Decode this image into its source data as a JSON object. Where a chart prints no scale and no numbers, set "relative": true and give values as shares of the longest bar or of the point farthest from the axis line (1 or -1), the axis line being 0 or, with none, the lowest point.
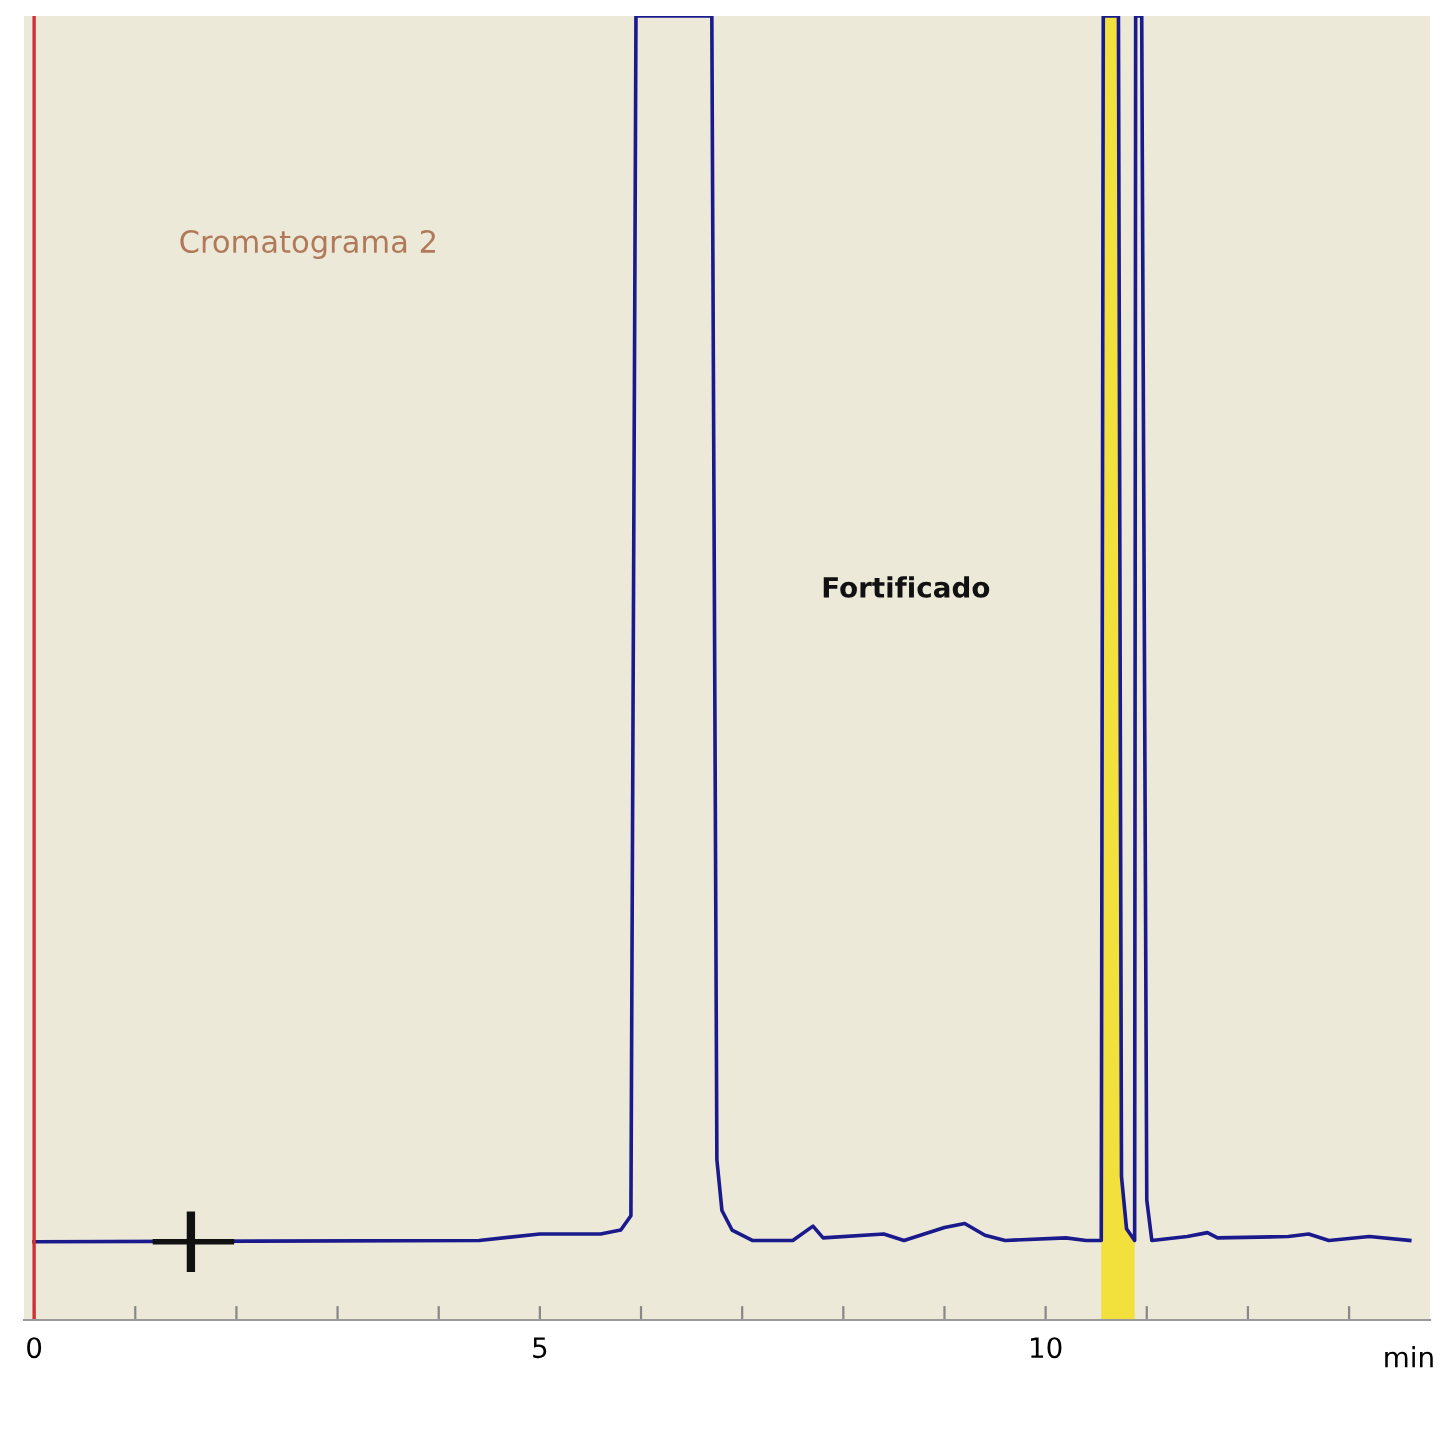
{
  "chart_data": {
    "type": "line",
    "relative": true,
    "xlabel": "min",
    "xlim": [
      -0.1,
      13.8
    ],
    "xticks": [
      0,
      {
        "value": 1,
        "label": null
      },
      {
        "value": 2,
        "label": null
      },
      {
        "value": 3,
        "label": null
      },
      {
        "value": 4,
        "label": null
      },
      5,
      {
        "value": 6,
        "label": null
      },
      {
        "value": 7,
        "label": null
      },
      {
        "value": 8,
        "label": null
      },
      {
        "value": 9,
        "label": null
      },
      10,
      {
        "value": 11,
        "label": null
      },
      {
        "value": 12,
        "label": null
      },
      {
        "value": 13,
        "label": null
      }
    ],
    "series": [
      {
        "type": "area",
        "color": "#f2e13c",
        "x": [
          10.55,
          10.57,
          10.72,
          10.75,
          10.8,
          10.88
        ],
        "values": [
          0.06,
          1,
          1,
          0.11,
          0.07,
          0.06
        ]
      },
      {
        "color": "#1a1a8c",
        "x": [
          0,
          4.4,
          5.0,
          5.6,
          5.8,
          5.9,
          5.95,
          6.7,
          6.75,
          6.8,
          6.9,
          7.1,
          7.5,
          7.7,
          7.8,
          8.4,
          8.6,
          9.0,
          9.2,
          9.4,
          9.6,
          10.2,
          10.4,
          10.55,
          10.57,
          10.72,
          10.75,
          10.8,
          10.88,
          10.89,
          10.95,
          11.0,
          11.05,
          11.4,
          11.6,
          11.7,
          12.4,
          12.6,
          12.8,
          13.2,
          13.6
        ],
        "values": [
          0.06,
          0.061,
          0.066,
          0.066,
          0.069,
          0.08,
          1,
          1,
          0.123,
          0.084,
          0.069,
          0.061,
          0.061,
          0.072,
          0.063,
          0.066,
          0.061,
          0.071,
          0.074,
          0.065,
          0.061,
          0.063,
          0.061,
          0.061,
          1,
          1,
          0.11,
          0.07,
          0.061,
          1,
          1,
          0.092,
          0.061,
          0.064,
          0.067,
          0.063,
          0.064,
          0.066,
          0.061,
          0.064,
          0.061
        ]
      }
    ],
    "ref_lines": [
      {
        "axis": "x",
        "value": 0,
        "color": "#d03030"
      }
    ],
    "annotations": [
      "Cromatograma 2",
      "Fortificado"
    ],
    "grid": false,
    "legend": false
  }
}
